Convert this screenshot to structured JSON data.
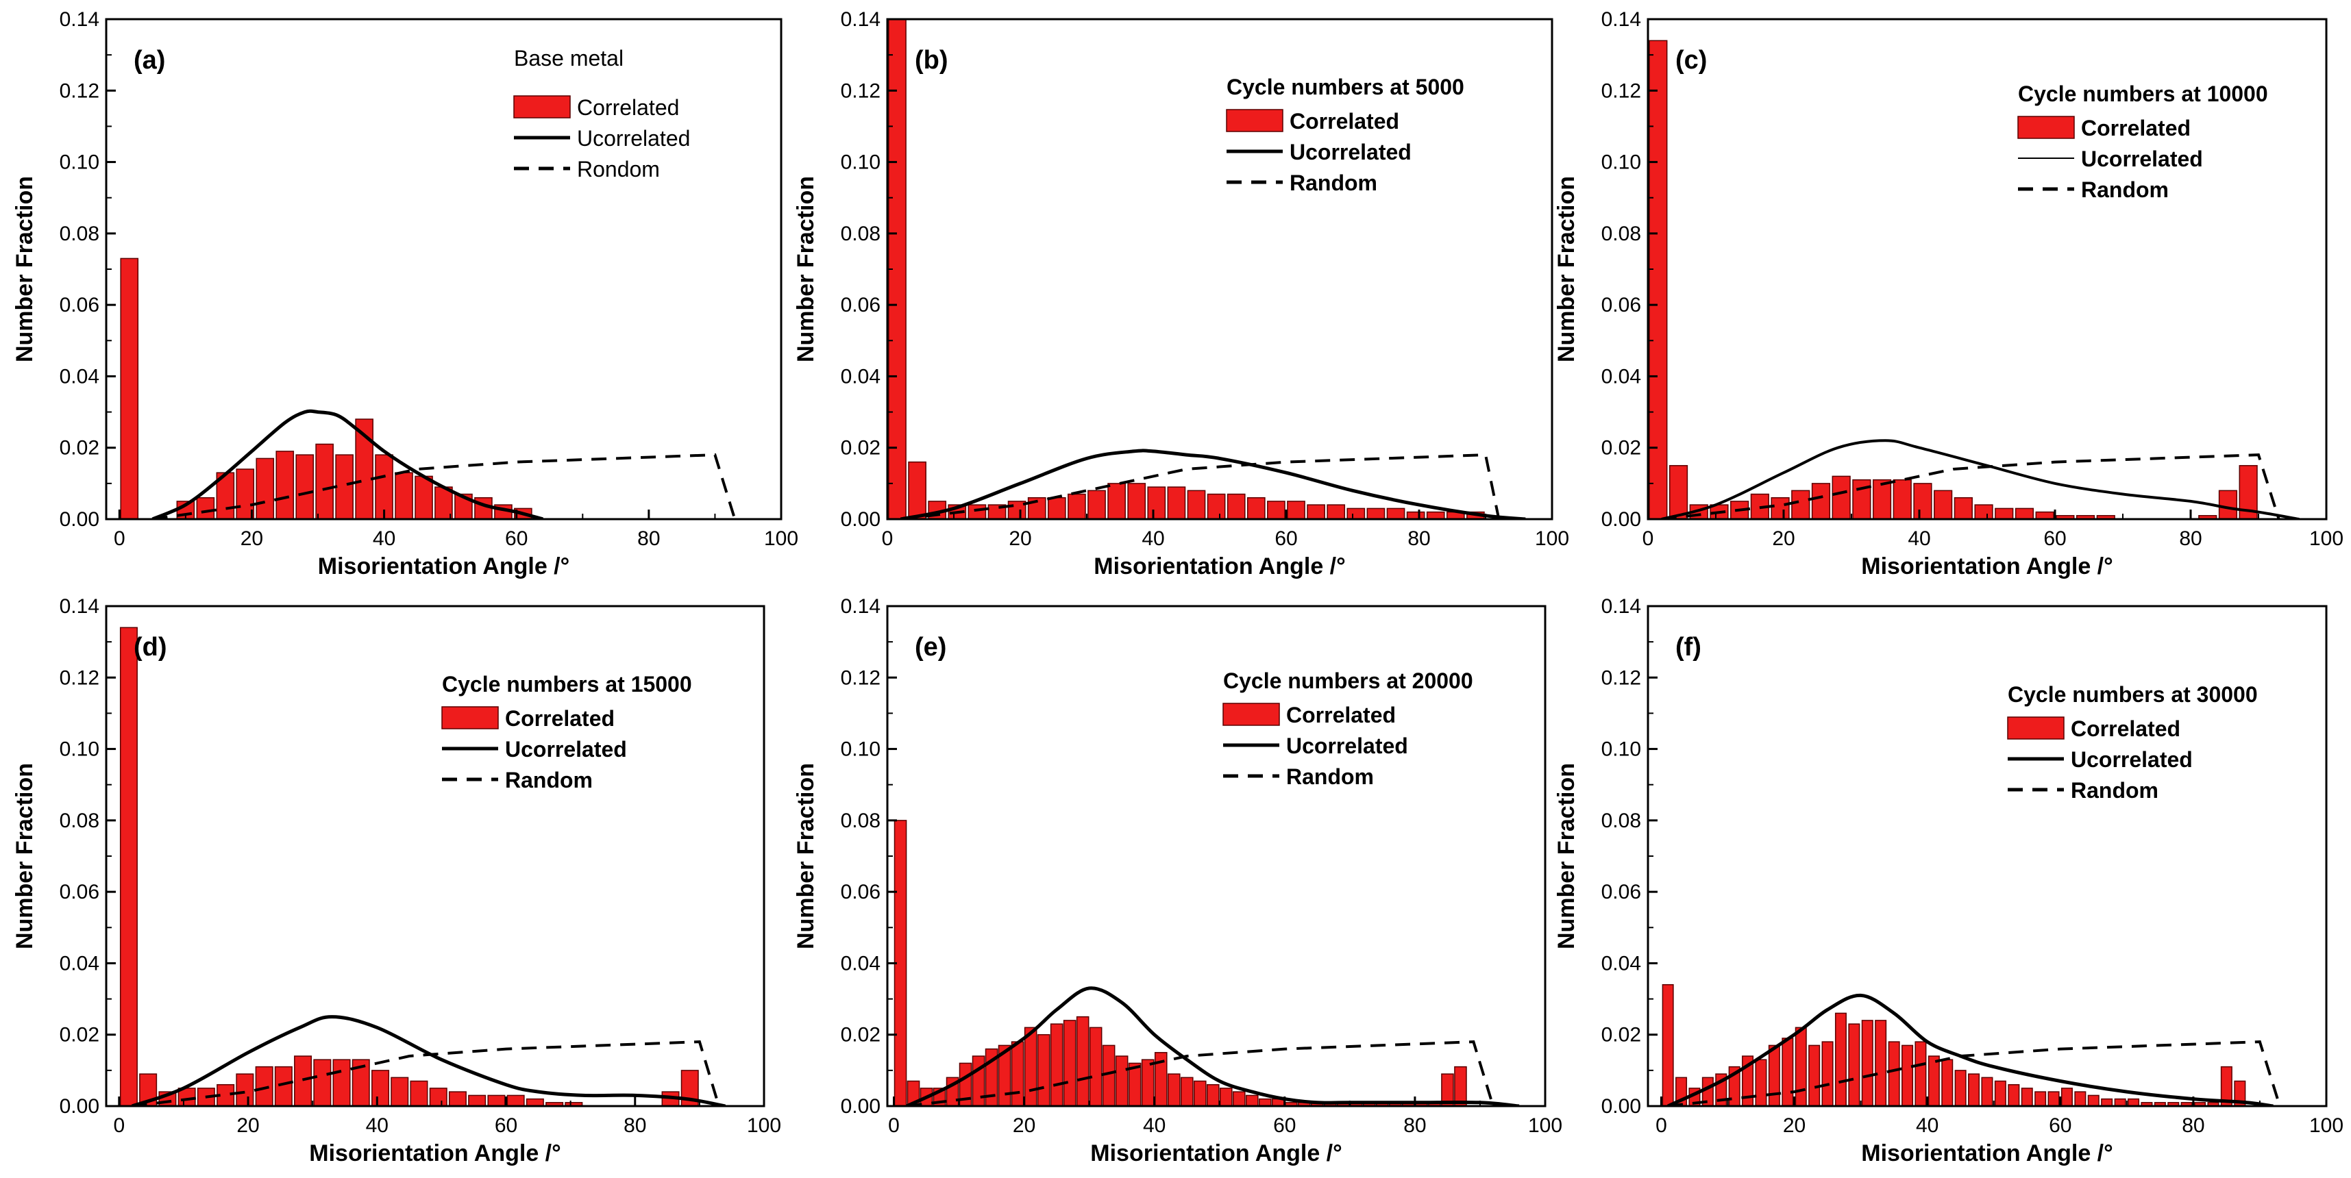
{
  "figure": {
    "colors": {
      "bar_fill": "#ee1c1c",
      "bar_stroke": "#5a0000",
      "axis": "#000000",
      "background": "#ffffff"
    },
    "shared": {
      "xlabel": "Misorientation Angle /°",
      "ylabel": "Number Fraction",
      "xticks": [
        0,
        20,
        40,
        60,
        80,
        100
      ],
      "yticks": [
        "0.00",
        "0.02",
        "0.04",
        "0.06",
        "0.08",
        "0.10",
        "0.12",
        "0.14"
      ]
    }
  },
  "chart_data": [
    {
      "type": "bar",
      "panel_label": "(a)",
      "title": "Base metal",
      "title_bold": false,
      "legend": [
        "Correlated",
        "Ucorrelated",
        "Rondom"
      ],
      "legend_bold": false,
      "xlabel": "Misorientation Angle /°",
      "ylabel": "Number Fraction",
      "xlim": [
        -2,
        100
      ],
      "ylim": [
        0,
        0.14
      ],
      "bar_width": 2.6,
      "bars": {
        "x": [
          1.5,
          10,
          13,
          16,
          19,
          22,
          25,
          28,
          31,
          34,
          37,
          40,
          43,
          46,
          49,
          52,
          55,
          58,
          61
        ],
        "y": [
          0.073,
          0.005,
          0.006,
          0.013,
          0.014,
          0.017,
          0.019,
          0.018,
          0.021,
          0.018,
          0.028,
          0.018,
          0.013,
          0.012,
          0.009,
          0.007,
          0.006,
          0.004,
          0.003
        ]
      },
      "uncorrelated": {
        "x": [
          5,
          10,
          15,
          20,
          25,
          28,
          30,
          33,
          36,
          40,
          45,
          50,
          55,
          60,
          64
        ],
        "y": [
          0.0,
          0.004,
          0.011,
          0.019,
          0.027,
          0.03,
          0.03,
          0.029,
          0.025,
          0.019,
          0.013,
          0.008,
          0.004,
          0.002,
          0.0
        ]
      },
      "random": {
        "x": [
          5,
          20,
          45,
          60,
          90,
          93
        ],
        "y": [
          0.0,
          0.004,
          0.014,
          0.016,
          0.018,
          0.0
        ]
      }
    },
    {
      "type": "bar",
      "panel_label": "(b)",
      "title": "Cycle numbers at 5000",
      "title_bold": true,
      "legend": [
        "Correlated",
        "Ucorrelated",
        "Random"
      ],
      "legend_bold": true,
      "xlabel": "Misorientation Angle /°",
      "ylabel": "Number Fraction",
      "xlim": [
        0,
        100
      ],
      "ylim": [
        0,
        0.14
      ],
      "bar_width": 2.6,
      "bars": {
        "x": [
          1.5,
          4.5,
          7.5,
          10.5,
          13.5,
          16.5,
          19.5,
          22.5,
          25.5,
          28.5,
          31.5,
          34.5,
          37.5,
          40.5,
          43.5,
          46.5,
          49.5,
          52.5,
          55.5,
          58.5,
          61.5,
          64.5,
          67.5,
          70.5,
          73.5,
          76.5,
          79.5,
          82.5,
          85.5,
          88.5
        ],
        "y": [
          0.14,
          0.016,
          0.005,
          0.004,
          0.004,
          0.004,
          0.005,
          0.006,
          0.006,
          0.007,
          0.008,
          0.01,
          0.01,
          0.009,
          0.009,
          0.008,
          0.007,
          0.007,
          0.006,
          0.005,
          0.005,
          0.004,
          0.004,
          0.003,
          0.003,
          0.003,
          0.002,
          0.002,
          0.002,
          0.002
        ]
      },
      "uncorrelated": {
        "x": [
          2,
          10,
          20,
          30,
          37,
          40,
          45,
          50,
          60,
          70,
          80,
          90,
          96
        ],
        "y": [
          0.0,
          0.003,
          0.01,
          0.017,
          0.019,
          0.019,
          0.018,
          0.017,
          0.013,
          0.008,
          0.004,
          0.001,
          0.0
        ]
      },
      "random": {
        "x": [
          2,
          20,
          45,
          60,
          90,
          92
        ],
        "y": [
          0.0,
          0.004,
          0.014,
          0.016,
          0.018,
          0.0
        ]
      }
    },
    {
      "type": "bar",
      "panel_label": "(c)",
      "title": "Cycle numbers at 10000",
      "title_bold": true,
      "legend": [
        "Correlated",
        "Ucorrelated",
        "Random"
      ],
      "legend_bold": true,
      "xlabel": "Misorientation Angle /°",
      "ylabel": "Number Fraction",
      "xlim": [
        0,
        100
      ],
      "ylim": [
        0,
        0.14
      ],
      "bar_width": 2.6,
      "bars": {
        "x": [
          1.5,
          4.5,
          7.5,
          10.5,
          13.5,
          16.5,
          19.5,
          22.5,
          25.5,
          28.5,
          31.5,
          34.5,
          37.5,
          40.5,
          43.5,
          46.5,
          49.5,
          52.5,
          55.5,
          58.5,
          61.5,
          64.5,
          67.5,
          70.5,
          73.5,
          76.5,
          79.5,
          82.5,
          85.5,
          88.5
        ],
        "y": [
          0.134,
          0.015,
          0.004,
          0.004,
          0.005,
          0.007,
          0.006,
          0.008,
          0.01,
          0.012,
          0.011,
          0.011,
          0.011,
          0.01,
          0.008,
          0.006,
          0.004,
          0.003,
          0.003,
          0.002,
          0.001,
          0.001,
          0.001,
          0.0,
          0.0,
          0.0,
          0.0,
          0.001,
          0.008,
          0.015
        ]
      },
      "uncorrelated": {
        "x": [
          2,
          10,
          20,
          28,
          35,
          40,
          50,
          60,
          70,
          80,
          86,
          90,
          96
        ],
        "y": [
          0.0,
          0.004,
          0.013,
          0.02,
          0.022,
          0.02,
          0.015,
          0.01,
          0.007,
          0.005,
          0.003,
          0.002,
          0.0
        ]
      },
      "random": {
        "x": [
          2,
          20,
          45,
          60,
          90,
          93
        ],
        "y": [
          0.0,
          0.004,
          0.014,
          0.016,
          0.018,
          0.0
        ]
      }
    },
    {
      "type": "bar",
      "panel_label": "(d)",
      "title": "Cycle numbers at 15000",
      "title_bold": true,
      "legend": [
        "Correlated",
        "Ucorrelated",
        "Random"
      ],
      "legend_bold": true,
      "xlabel": "Misorientation Angle /°",
      "ylabel": "Number Fraction",
      "xlim": [
        -2,
        100
      ],
      "ylim": [
        0,
        0.14
      ],
      "bar_width": 2.6,
      "bars": {
        "x": [
          1.5,
          4.5,
          7.5,
          10.5,
          13.5,
          16.5,
          19.5,
          22.5,
          25.5,
          28.5,
          31.5,
          34.5,
          37.5,
          40.5,
          43.5,
          46.5,
          49.5,
          52.5,
          55.5,
          58.5,
          61.5,
          64.5,
          67.5,
          70.5,
          73.5,
          76.5,
          79.5,
          82.5,
          85.5,
          88.5
        ],
        "y": [
          0.134,
          0.009,
          0.004,
          0.005,
          0.005,
          0.006,
          0.009,
          0.011,
          0.011,
          0.014,
          0.013,
          0.013,
          0.013,
          0.01,
          0.008,
          0.007,
          0.005,
          0.004,
          0.003,
          0.003,
          0.003,
          0.002,
          0.001,
          0.001,
          0.0,
          0.0,
          0.0,
          0.0,
          0.004,
          0.01
        ]
      },
      "uncorrelated": {
        "x": [
          2,
          10,
          20,
          28,
          33,
          40,
          50,
          60,
          65,
          72,
          80,
          88,
          94
        ],
        "y": [
          0.0,
          0.005,
          0.015,
          0.022,
          0.025,
          0.022,
          0.013,
          0.006,
          0.004,
          0.003,
          0.003,
          0.002,
          0.0
        ]
      },
      "random": {
        "x": [
          2,
          20,
          45,
          60,
          90,
          93
        ],
        "y": [
          0.0,
          0.004,
          0.014,
          0.016,
          0.018,
          0.0
        ]
      }
    },
    {
      "type": "bar",
      "panel_label": "(e)",
      "title": "Cycle numbers at 20000",
      "title_bold": true,
      "legend": [
        "Correlated",
        "Ucorrelated",
        "Random"
      ],
      "legend_bold": true,
      "xlabel": "Misorientation Angle /°",
      "ylabel": "Number Fraction",
      "xlim": [
        -1,
        100
      ],
      "ylim": [
        0,
        0.14
      ],
      "bar_width": 1.8,
      "bars": {
        "x": [
          1,
          3,
          5,
          7,
          9,
          11,
          13,
          15,
          17,
          19,
          21,
          23,
          25,
          27,
          29,
          31,
          33,
          35,
          37,
          39,
          41,
          43,
          45,
          47,
          49,
          51,
          53,
          55,
          57,
          59,
          61,
          63,
          65,
          67,
          69,
          71,
          73,
          75,
          77,
          79,
          81,
          83,
          85,
          87
        ],
        "y": [
          0.08,
          0.007,
          0.005,
          0.005,
          0.008,
          0.012,
          0.014,
          0.016,
          0.017,
          0.018,
          0.022,
          0.02,
          0.023,
          0.024,
          0.025,
          0.022,
          0.017,
          0.014,
          0.012,
          0.013,
          0.015,
          0.009,
          0.008,
          0.007,
          0.006,
          0.005,
          0.004,
          0.003,
          0.002,
          0.002,
          0.001,
          0.001,
          0.001,
          0.001,
          0.001,
          0.001,
          0.001,
          0.001,
          0.001,
          0.001,
          0.001,
          0.001,
          0.009,
          0.011
        ]
      },
      "uncorrelated": {
        "x": [
          2,
          10,
          20,
          25,
          30,
          35,
          40,
          45,
          50,
          55,
          60,
          65,
          70,
          80,
          90,
          96
        ],
        "y": [
          0.0,
          0.007,
          0.019,
          0.027,
          0.033,
          0.029,
          0.02,
          0.013,
          0.007,
          0.004,
          0.002,
          0.001,
          0.001,
          0.001,
          0.001,
          0.0
        ]
      },
      "random": {
        "x": [
          2,
          20,
          45,
          60,
          89,
          92
        ],
        "y": [
          0.0,
          0.004,
          0.014,
          0.016,
          0.018,
          0.0
        ]
      }
    },
    {
      "type": "bar",
      "panel_label": "(f)",
      "title": "Cycle numbers at 30000",
      "title_bold": true,
      "legend": [
        "Correlated",
        "Ucorrelated",
        "Random"
      ],
      "legend_bold": true,
      "xlabel": "Misorientation Angle /°",
      "ylabel": "Number Fraction",
      "xlim": [
        -2,
        100
      ],
      "ylim": [
        0,
        0.14
      ],
      "bar_width": 1.6,
      "bars": {
        "x": [
          1,
          3,
          5,
          7,
          9,
          11,
          13,
          15,
          17,
          19,
          21,
          23,
          25,
          27,
          29,
          31,
          33,
          35,
          37,
          39,
          41,
          43,
          45,
          47,
          49,
          51,
          53,
          55,
          57,
          59,
          61,
          63,
          65,
          67,
          69,
          71,
          73,
          75,
          77,
          79,
          81,
          83,
          85,
          87
        ],
        "y": [
          0.034,
          0.008,
          0.005,
          0.008,
          0.009,
          0.011,
          0.014,
          0.013,
          0.017,
          0.019,
          0.022,
          0.017,
          0.018,
          0.026,
          0.023,
          0.024,
          0.024,
          0.018,
          0.017,
          0.018,
          0.014,
          0.013,
          0.01,
          0.009,
          0.008,
          0.007,
          0.006,
          0.005,
          0.004,
          0.004,
          0.005,
          0.004,
          0.003,
          0.002,
          0.002,
          0.002,
          0.001,
          0.001,
          0.001,
          0.001,
          0.001,
          0.001,
          0.011,
          0.007
        ]
      },
      "uncorrelated": {
        "x": [
          1,
          10,
          20,
          25,
          30,
          35,
          40,
          45,
          50,
          60,
          70,
          80,
          88,
          92
        ],
        "y": [
          0.0,
          0.008,
          0.02,
          0.027,
          0.031,
          0.026,
          0.018,
          0.014,
          0.011,
          0.007,
          0.004,
          0.002,
          0.001,
          0.0
        ]
      },
      "random": {
        "x": [
          1,
          20,
          45,
          60,
          90,
          93
        ],
        "y": [
          0.0,
          0.004,
          0.014,
          0.016,
          0.018,
          0.0
        ]
      }
    }
  ]
}
